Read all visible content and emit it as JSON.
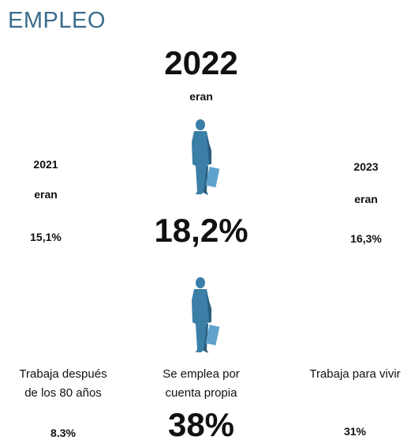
{
  "header": {
    "title": "EMPLEO"
  },
  "center": {
    "year": "2022",
    "verb": "eran",
    "value": "18,2%"
  },
  "left": {
    "year": "2021",
    "verb": "eran",
    "value": "15,1%"
  },
  "right": {
    "year": "2023",
    "verb": "eran",
    "value": "16,3%"
  },
  "stats": [
    {
      "label_lines": [
        "Trabaja después",
        "de los 80 años"
      ],
      "value": "8.3%"
    },
    {
      "label_lines": [
        "Se emplea por",
        "cuenta propia"
      ],
      "value": "38%"
    },
    {
      "label_lines": [
        "Trabaja para vivir"
      ],
      "value": "31%"
    }
  ]
}
